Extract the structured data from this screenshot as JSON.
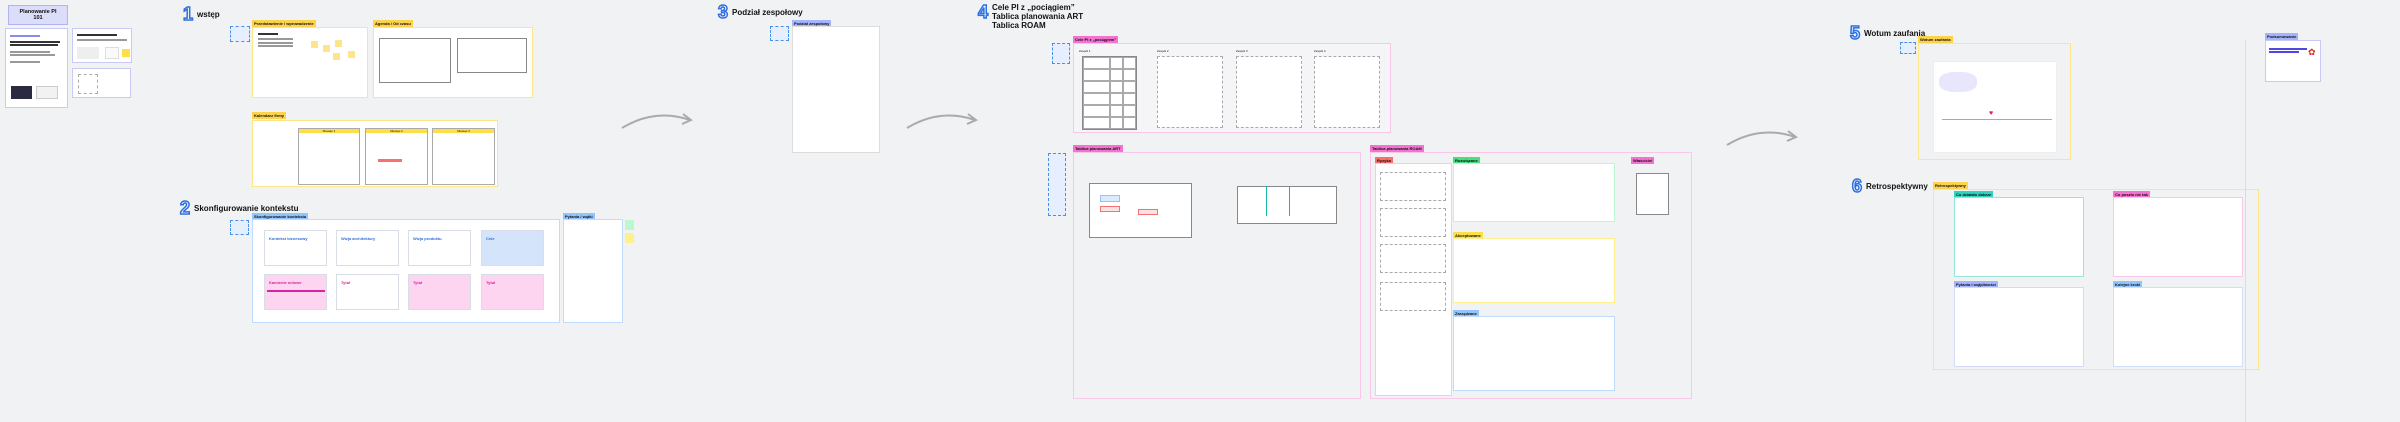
{
  "board_title": "Planowanie PI 101",
  "sections": [
    {
      "num": "1",
      "title": "wstęp"
    },
    {
      "num": "2",
      "title": "Skonfigurowanie kontekstu"
    },
    {
      "num": "3",
      "title": "Podział zespołowy"
    },
    {
      "num": "4",
      "title": "Cele PI z „pociągiem”",
      "title2": "Tablica planowania ART",
      "title3": "Tablica ROAM"
    },
    {
      "num": "5",
      "title": "Wotum zaufania"
    },
    {
      "num": "6",
      "title": "Retrospektywny"
    }
  ],
  "frames": {
    "intro": "Przedstawienie / wprowadzenie",
    "agenda": "Agenda / Od czasu",
    "calendar": "Kalendarz firmy",
    "context": "Skonfigurowanie kontekstu",
    "questions": "Pytania / wątki",
    "teams": "Podział zespołowy",
    "pi_goals": "Cele PI z „pociągiem”",
    "art": "Tablica planowania ART",
    "roam": "Tablica planowania ROAM",
    "roam_cols": [
      "Ryzyka",
      "Rozwiązane",
      "Właściciel",
      "Akceptowane",
      "Zarządzane"
    ],
    "vote": "Wotum zaufania",
    "retro": "Retrospektywny",
    "retro_boxes": [
      "Co działało dobrze",
      "Co poszło nie tak",
      "Pytania i wątpliwości",
      "Kolejne kroki"
    ],
    "summary": "Podsumowanie"
  },
  "calendar_months": [
    "Miesiąc 1",
    "Miesiąc 2",
    "Miesiąc 3"
  ],
  "context_cards": [
    {
      "title": "Kontekst biznesowy",
      "color": "#2d6fe0"
    },
    {
      "title": "Wizja architektury",
      "color": "#2d6fe0"
    },
    {
      "title": "Wizja produktu",
      "color": "#2d6fe0"
    },
    {
      "title": "Cele",
      "color": "#2d6fe0"
    },
    {
      "title": "Kamienie milowe",
      "color": "#d6249f"
    },
    {
      "title": "Tytuł",
      "color": "#d6249f"
    },
    {
      "title": "Tytuł",
      "color": "#d6249f"
    },
    {
      "title": "Tytuł",
      "color": "#d6249f"
    }
  ],
  "pi_goal_columns": [
    "Zespół 1",
    "Zespół 2",
    "Zespół 3",
    "Zespół 4"
  ],
  "colors": {
    "accent": "#2d6fe0",
    "yellow": "#fcd34d",
    "pink": "#f9a8d4",
    "purple": "#a5b4fc"
  }
}
